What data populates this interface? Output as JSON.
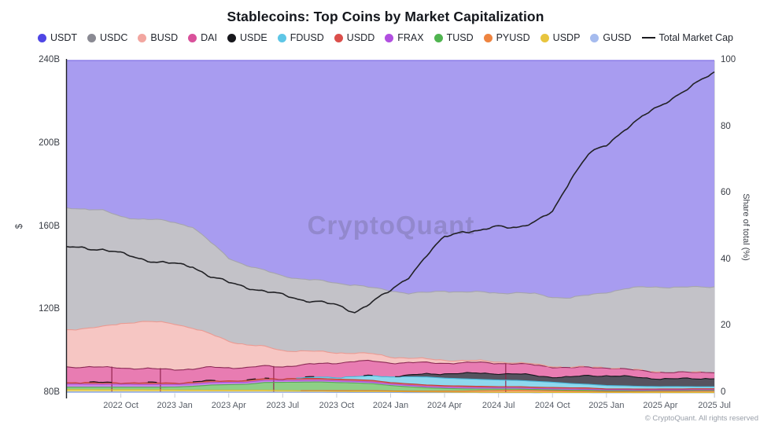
{
  "header": {
    "title": "Stablecoins: Top Coins by Market Capitalization"
  },
  "watermark": "CryptoQuant",
  "footer": {
    "copyright": "© CryptoQuant. All rights reserved"
  },
  "legend": {
    "total_label": "Total Market Cap"
  },
  "axes": {
    "left": {
      "title": "$",
      "tick_labels": [
        "240B",
        "200B",
        "160B",
        "120B",
        "80B"
      ]
    },
    "right": {
      "title": "Share of total (%)",
      "tick_labels": [
        "100",
        "80",
        "60",
        "40",
        "20",
        "0"
      ]
    }
  },
  "chart_data": {
    "type": "area",
    "stacking": "percent",
    "title": "Stablecoins: Top Coins by Market Capitalization",
    "left_axis": {
      "label": "$",
      "unit": "B USD",
      "min": 80,
      "max": 240,
      "ticks": [
        240,
        200,
        160,
        120,
        80
      ]
    },
    "right_axis": {
      "label": "Share of total (%)",
      "min": 0,
      "max": 100,
      "ticks": [
        100,
        80,
        60,
        40,
        20,
        0
      ]
    },
    "grid": false,
    "legend_position": "top",
    "x": [
      "2022-07",
      "2022-08",
      "2022-09",
      "2022-10",
      "2022-11",
      "2022-12",
      "2023-01",
      "2023-02",
      "2023-03",
      "2023-04",
      "2023-05",
      "2023-06",
      "2023-07",
      "2023-08",
      "2023-09",
      "2023-10",
      "2023-11",
      "2023-12",
      "2024-01",
      "2024-02",
      "2024-03",
      "2024-04",
      "2024-05",
      "2024-06",
      "2024-07",
      "2024-08",
      "2024-09",
      "2024-10",
      "2024-11",
      "2024-12",
      "2025-01",
      "2025-02",
      "2025-03",
      "2025-04",
      "2025-05",
      "2025-06",
      "2025-07"
    ],
    "x_tick_labels": [
      "2022 Oct",
      "2023 Jan",
      "2023 Apr",
      "2023 Jul",
      "2023 Oct",
      "2024 Jan",
      "2024 Apr",
      "2024 Jul",
      "2024 Oct",
      "2025 Jan",
      "2025 Apr",
      "2025 Jul"
    ],
    "x_tick_month_index": [
      3,
      6,
      9,
      12,
      15,
      18,
      21,
      24,
      27,
      30,
      33,
      36
    ],
    "series": [
      {
        "name": "USDT",
        "dot": "#4f46e5",
        "fill": "#a89cf0",
        "stroke": "#8d7fe8",
        "share_pct": [
          43.5,
          44,
          44.5,
          46,
          47,
          47.5,
          48,
          48.5,
          52.5,
          56,
          58,
          59.5,
          60.5,
          62,
          63.5,
          65.5,
          67.5,
          69,
          69.5,
          70,
          70,
          70,
          70.5,
          71,
          71,
          71,
          71.5,
          72,
          71.5,
          70.5,
          69.5,
          68.5,
          68,
          68,
          68,
          68,
          67.8
        ]
      },
      {
        "name": "USDC",
        "dot": "#8a8a93",
        "fill": "#c3c2c8",
        "stroke": "#a5a4ad",
        "share_pct": [
          36,
          35.5,
          34.5,
          31.5,
          30.5,
          30.5,
          30,
          29.5,
          26.5,
          23.5,
          22.5,
          21.5,
          21,
          20.5,
          20.5,
          20.5,
          20.5,
          20,
          20,
          19.5,
          20,
          21,
          21,
          21,
          21,
          21.5,
          21.5,
          21,
          21,
          21.5,
          22.5,
          24,
          25,
          25.5,
          25.5,
          25.5,
          25.5
        ]
      },
      {
        "name": "BUSD",
        "dot": "#f2a6a0",
        "fill": "#f6c6c3",
        "stroke": "#eb9a92",
        "share_pct": [
          11,
          11.5,
          12,
          13,
          14,
          14,
          13.5,
          12,
          9.5,
          7.5,
          6.5,
          5.5,
          4.5,
          4,
          3.5,
          3,
          2.5,
          2.2,
          1.8,
          1.4,
          1.1,
          0.9,
          0.7,
          0.5,
          0.4,
          0.3,
          0.25,
          0.2,
          0.15,
          0.1,
          0.1,
          0.08,
          0.06,
          0.05,
          0.05,
          0.04,
          0.04
        ]
      },
      {
        "name": "DAI",
        "dot": "#d9519b",
        "fill": "#e87cb2",
        "stroke": "#8c2b55",
        "share_pct": [
          4.6,
          4.6,
          4.5,
          4.4,
          4.2,
          4.1,
          4.0,
          3.8,
          3.9,
          3.7,
          3.6,
          3.5,
          3.4,
          3.6,
          3.8,
          4.2,
          4.6,
          4.4,
          4.1,
          3.8,
          3.4,
          3.2,
          3.2,
          3.3,
          3.2,
          3.1,
          3.2,
          3.1,
          2.8,
          2.5,
          2.4,
          2.2,
          2.1,
          2.0,
          1.9,
          1.9,
          1.9
        ]
      },
      {
        "name": "USDE",
        "dot": "#17171c",
        "fill": "#56535f",
        "stroke": "#17161c",
        "share_pct": [
          0,
          0,
          0,
          0,
          0,
          0,
          0,
          0,
          0,
          0,
          0,
          0,
          0,
          0,
          0,
          0,
          0,
          0,
          0.2,
          0.4,
          0.9,
          1.4,
          1.6,
          1.9,
          2.0,
          1.9,
          1.8,
          1.6,
          1.9,
          2.6,
          3.0,
          2.8,
          2.6,
          2.4,
          2.3,
          2.4,
          2.6
        ]
      },
      {
        "name": "FDUSD",
        "dot": "#5ec6e6",
        "fill": "#8fd8ee",
        "stroke": "#49b7da",
        "share_pct": [
          0,
          0,
          0,
          0,
          0,
          0,
          0,
          0,
          0,
          0,
          0,
          0,
          0,
          0.2,
          0.4,
          0.6,
          0.9,
          1.4,
          1.7,
          2.1,
          2.4,
          2.3,
          2.2,
          2.1,
          2.0,
          1.9,
          1.8,
          1.6,
          1.3,
          1.1,
          1.0,
          0.9,
          0.8,
          0.7,
          0.7,
          0.6,
          0.6
        ]
      },
      {
        "name": "USDD",
        "dot": "#db4f4b",
        "fill": "#e2716d",
        "stroke": "#c03a36",
        "share_pct": [
          0.5,
          0.5,
          0.5,
          0.5,
          0.5,
          0.5,
          0.5,
          0.5,
          0.5,
          0.5,
          0.5,
          0.5,
          0.5,
          0.5,
          0.5,
          0.5,
          0.5,
          0.5,
          0.45,
          0.45,
          0.45,
          0.45,
          0.45,
          0.45,
          0.4,
          0.4,
          0.4,
          0.4,
          0.4,
          0.4,
          0.3,
          0.3,
          0.3,
          0.3,
          0.3,
          0.3,
          0.3
        ]
      },
      {
        "name": "FRAX",
        "dot": "#b14fe0",
        "fill": "#ca86ea",
        "stroke": "#a94fd6",
        "share_pct": [
          0.9,
          0.9,
          0.85,
          0.85,
          0.8,
          0.8,
          0.75,
          0.7,
          0.7,
          0.65,
          0.6,
          0.6,
          0.55,
          0.55,
          0.5,
          0.5,
          0.5,
          0.5,
          0.45,
          0.45,
          0.4,
          0.4,
          0.4,
          0.4,
          0.35,
          0.35,
          0.3,
          0.3,
          0.3,
          0.3,
          0.25,
          0.25,
          0.2,
          0.2,
          0.2,
          0.2,
          0.2
        ]
      },
      {
        "name": "TUSD",
        "dot": "#50b450",
        "fill": "#8ecf86",
        "stroke": "#57ab57",
        "share_pct": [
          0.75,
          0.75,
          0.8,
          0.8,
          0.8,
          0.8,
          0.9,
          1.1,
          1.5,
          1.6,
          1.7,
          2.2,
          2.3,
          2.4,
          2.5,
          2.4,
          2.3,
          2.1,
          1.6,
          1.3,
          1.0,
          0.8,
          0.7,
          0.5,
          0.4,
          0.35,
          0.3,
          0.3,
          0.3,
          0.3,
          0.25,
          0.25,
          0.2,
          0.2,
          0.2,
          0.2,
          0.2
        ]
      },
      {
        "name": "PYUSD",
        "dot": "#ee8440",
        "fill": "#f2a96e",
        "stroke": "#e07a2e",
        "share_pct": [
          0,
          0,
          0,
          0,
          0,
          0,
          0,
          0,
          0,
          0,
          0,
          0,
          0,
          0.05,
          0.1,
          0.15,
          0.2,
          0.2,
          0.2,
          0.2,
          0.25,
          0.3,
          0.35,
          0.5,
          0.6,
          0.65,
          0.6,
          0.5,
          0.4,
          0.35,
          0.3,
          0.3,
          0.35,
          0.4,
          0.4,
          0.45,
          0.45
        ]
      },
      {
        "name": "USDP",
        "dot": "#e8c53e",
        "fill": "#eedb77",
        "stroke": "#d9ba2e",
        "share_pct": [
          0.65,
          0.65,
          0.6,
          0.6,
          0.6,
          0.6,
          0.55,
          0.55,
          0.5,
          0.5,
          0.5,
          0.5,
          0.45,
          0.4,
          0.4,
          0.35,
          0.35,
          0.35,
          0.3,
          0.25,
          0.2,
          0.15,
          0.1,
          0.1,
          0.1,
          0.1,
          0.1,
          0.08,
          0.08,
          0.08,
          0.06,
          0.06,
          0.05,
          0.05,
          0.05,
          0.05,
          0.05
        ]
      },
      {
        "name": "GUSD",
        "dot": "#a5bbee",
        "fill": "#b9cbf2",
        "stroke": "#8fa9e6",
        "share_pct": [
          0.3,
          0.3,
          0.3,
          0.3,
          0.3,
          0.3,
          0.3,
          0.28,
          0.28,
          0.25,
          0.25,
          0.25,
          0.22,
          0.2,
          0.18,
          0.16,
          0.15,
          0.15,
          0.12,
          0.1,
          0.1,
          0.1,
          0.1,
          0.08,
          0.08,
          0.08,
          0.06,
          0.06,
          0.06,
          0.06,
          0.05,
          0.05,
          0.05,
          0.05,
          0.05,
          0.05,
          0.05
        ]
      }
    ],
    "total_market_cap": {
      "name": "Total Market Cap",
      "color": "#222226",
      "unit": "$B",
      "values": [
        150,
        150,
        149,
        147,
        145,
        143,
        142,
        141,
        136,
        133,
        131,
        129,
        127,
        125,
        124,
        122,
        119,
        124,
        129,
        136,
        146,
        155,
        158,
        158,
        160,
        160,
        162,
        167,
        183,
        195,
        199,
        207,
        213,
        218,
        224,
        229,
        234
      ]
    },
    "artifact_spike_month_index": [
      2.5,
      5.2,
      11.5,
      24.4
    ]
  }
}
